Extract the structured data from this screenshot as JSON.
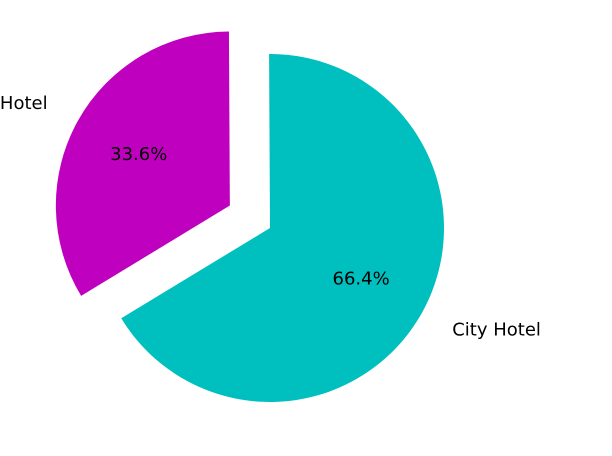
{
  "chart_data": {
    "type": "pie",
    "slices": [
      {
        "label": "City Hotel",
        "value": 66.4,
        "pct_label": "66.4%",
        "color": "#00bfbf",
        "exploded": false
      },
      {
        "label": "Resort Hotel",
        "value": 33.6,
        "pct_label": "33.6%",
        "color": "#bf00bf",
        "exploded": true
      }
    ],
    "start_angle_deg": -90.3,
    "direction": "clockwise",
    "title": "",
    "legend": false
  }
}
